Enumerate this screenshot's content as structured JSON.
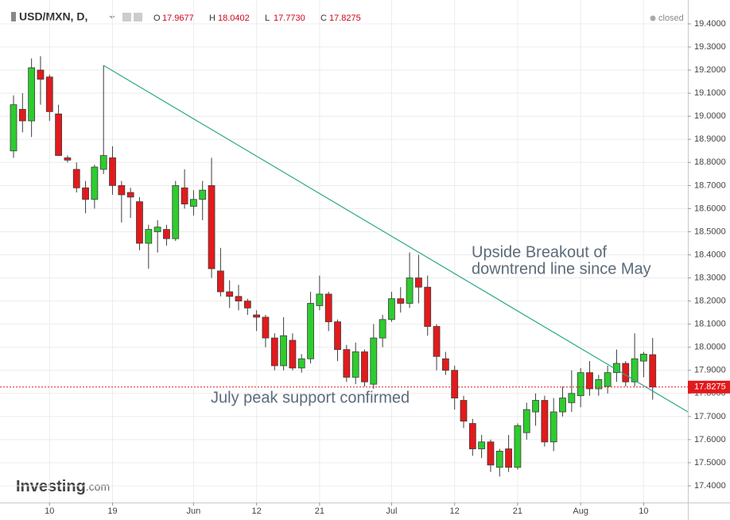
{
  "header": {
    "symbol": "USD/MXN, D,",
    "ohlc": [
      [
        "O",
        "17.9677"
      ],
      [
        "H",
        "18.0402"
      ],
      [
        "L",
        "17.7730"
      ],
      [
        "C",
        "17.8275"
      ]
    ],
    "status": "closed"
  },
  "logo": [
    "Investing",
    ".com"
  ],
  "chart_data": {
    "type": "candlestick",
    "categories": [
      null,
      null,
      null,
      null,
      "10",
      null,
      null,
      null,
      null,
      null,
      null,
      "19",
      null,
      null,
      null,
      null,
      null,
      null,
      null,
      null,
      "Jun",
      null,
      null,
      null,
      null,
      null,
      null,
      "12",
      null,
      null,
      null,
      null,
      null,
      null,
      "21",
      null,
      null,
      null,
      null,
      null,
      null,
      null,
      "Jul",
      null,
      null,
      null,
      null,
      null,
      null,
      "12",
      null,
      null,
      null,
      null,
      null,
      null,
      "21",
      null,
      null,
      null,
      null,
      null,
      null,
      "Aug",
      null,
      null,
      null,
      null,
      null,
      null,
      "10",
      null
    ],
    "open": [
      18.85,
      19.03,
      18.98,
      19.2,
      19.17,
      19.01,
      18.82,
      18.77,
      18.69,
      18.64,
      18.77,
      18.82,
      18.7,
      18.67,
      18.63,
      18.45,
      18.5,
      18.51,
      18.47,
      18.69,
      18.61,
      18.64,
      18.7,
      18.33,
      18.24,
      18.22,
      18.2,
      18.14,
      18.13,
      18.04,
      17.92,
      18.03,
      17.91,
      17.95,
      18.18,
      18.23,
      18.11,
      17.99,
      17.87,
      17.98,
      17.84,
      18.04,
      18.12,
      18.21,
      18.19,
      18.3,
      18.26,
      18.09,
      17.95,
      17.9,
      17.77,
      17.67,
      17.56,
      17.59,
      17.48,
      17.56,
      17.48,
      17.63,
      17.72,
      17.77,
      17.59,
      17.72,
      17.76,
      17.79,
      17.89,
      17.82,
      17.83,
      17.89,
      17.93,
      17.85,
      17.94,
      17.9677
    ],
    "high": [
      19.09,
      19.1,
      19.25,
      19.26,
      19.18,
      19.05,
      18.83,
      18.8,
      18.72,
      18.79,
      19.22,
      18.87,
      18.72,
      18.69,
      18.65,
      18.53,
      18.55,
      18.53,
      18.72,
      18.77,
      18.68,
      18.72,
      18.82,
      18.43,
      18.29,
      18.27,
      18.21,
      18.16,
      18.14,
      18.06,
      18.13,
      18.06,
      17.97,
      18.24,
      18.31,
      18.24,
      18.12,
      18.01,
      18.02,
      17.99,
      18.1,
      18.14,
      18.24,
      18.26,
      18.41,
      18.4,
      18.31,
      18.1,
      17.98,
      17.92,
      17.79,
      17.69,
      17.62,
      17.6,
      17.56,
      17.62,
      17.67,
      17.76,
      17.8,
      17.79,
      17.78,
      17.83,
      17.9,
      17.91,
      17.94,
      17.88,
      17.92,
      17.99,
      17.94,
      18.06,
      17.98,
      18.0402
    ],
    "low": [
      18.82,
      18.93,
      18.91,
      19.05,
      18.98,
      18.83,
      18.8,
      18.67,
      18.58,
      18.6,
      18.75,
      18.66,
      18.54,
      18.56,
      18.42,
      18.34,
      18.41,
      18.44,
      18.46,
      18.6,
      18.57,
      18.55,
      18.3,
      18.22,
      18.17,
      18.16,
      18.14,
      18.07,
      18.0,
      17.9,
      17.9,
      17.9,
      17.89,
      17.93,
      18.16,
      18.07,
      17.94,
      17.85,
      17.84,
      17.83,
      17.82,
      18.0,
      18.11,
      18.15,
      18.17,
      18.19,
      18.05,
      17.9,
      17.88,
      17.73,
      17.65,
      17.53,
      17.52,
      17.46,
      17.44,
      17.46,
      17.47,
      17.6,
      17.66,
      17.57,
      17.55,
      17.7,
      17.72,
      17.74,
      17.79,
      17.79,
      17.8,
      17.85,
      17.83,
      17.83,
      17.87,
      17.773
    ],
    "close": [
      19.05,
      18.98,
      19.21,
      19.16,
      19.02,
      18.83,
      18.81,
      18.69,
      18.64,
      18.78,
      18.83,
      18.7,
      18.66,
      18.65,
      18.45,
      18.51,
      18.52,
      18.47,
      18.7,
      18.62,
      18.64,
      18.68,
      18.34,
      18.24,
      18.22,
      18.2,
      18.17,
      18.13,
      18.04,
      17.92,
      18.05,
      17.91,
      17.95,
      18.19,
      18.23,
      18.11,
      17.99,
      17.87,
      17.98,
      17.85,
      18.04,
      18.12,
      18.21,
      18.19,
      18.3,
      18.26,
      18.09,
      17.96,
      17.9,
      17.78,
      17.68,
      17.56,
      17.59,
      17.49,
      17.55,
      17.48,
      17.66,
      17.73,
      17.77,
      17.59,
      17.72,
      17.78,
      17.8,
      17.89,
      17.82,
      17.86,
      17.89,
      17.93,
      17.85,
      17.95,
      17.97,
      17.8275
    ],
    "up_color": "#2ecc2e",
    "down_color": "#e31a1c",
    "edge_color": "#3d3d3d",
    "ylim": [
      17.4,
      19.4
    ],
    "yticks": [
      {
        "value": 17.4,
        "label": "17.4000"
      },
      {
        "value": 17.5,
        "label": "17.5000"
      },
      {
        "value": 17.6,
        "label": "17.6000"
      },
      {
        "value": 17.7,
        "label": "17.7000"
      },
      {
        "value": 17.8,
        "label": "17.8000"
      },
      {
        "value": 17.9,
        "label": "17.9000"
      },
      {
        "value": 18.0,
        "label": "18.0000"
      },
      {
        "value": 18.1,
        "label": "18.1000"
      },
      {
        "value": 18.2,
        "label": "18.2000"
      },
      {
        "value": 18.3,
        "label": "18.3000"
      },
      {
        "value": 18.4,
        "label": "18.4000"
      },
      {
        "value": 18.5,
        "label": "18.5000"
      },
      {
        "value": 18.6,
        "label": "18.6000"
      },
      {
        "value": 18.7,
        "label": "18.7000"
      },
      {
        "value": 18.8,
        "label": "18.8000"
      },
      {
        "value": 18.9,
        "label": "18.9000"
      },
      {
        "value": 19.0,
        "label": "19.0000"
      },
      {
        "value": 19.1,
        "label": "19.1000"
      },
      {
        "value": 19.2,
        "label": "19.2000"
      },
      {
        "value": 19.3,
        "label": "19.3000"
      },
      {
        "value": 19.4,
        "label": "19.4000"
      }
    ],
    "grid": true,
    "last_price": {
      "value": 17.8275,
      "label": "17.8275",
      "color": "#e31a1c"
    },
    "trend_line": {
      "start": 19.22,
      "end": 17.72,
      "color": "#2aa88a"
    },
    "annotations": [
      {
        "lines": [
          "Upside Breakout of",
          "downtrend line since May"
        ]
      },
      {
        "lines": [
          "July peak support confirmed"
        ]
      }
    ]
  }
}
